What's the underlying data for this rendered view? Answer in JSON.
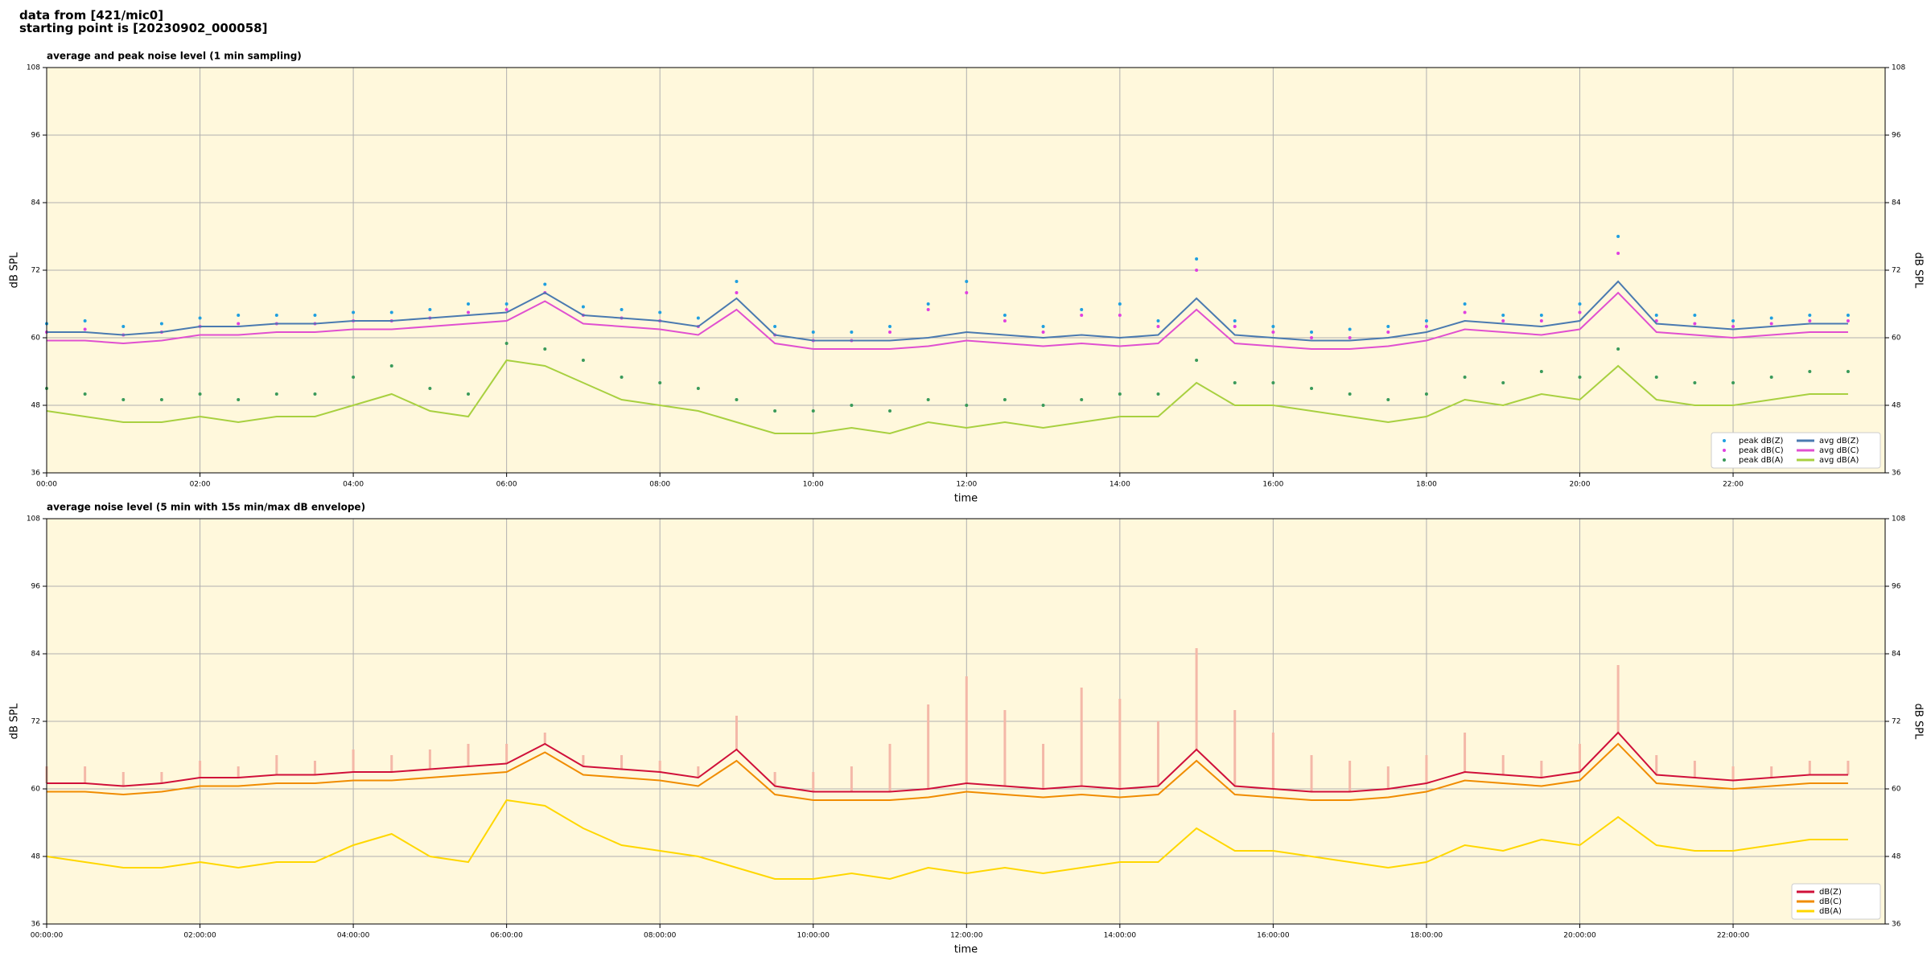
{
  "header": {
    "line1": "data from [421/mic0]",
    "line2": "starting point is [20230902_000058]"
  },
  "chart_data": [
    {
      "type": "line",
      "title": "average and peak noise level (1 min sampling)",
      "xlabel": "time",
      "ylabel": "dB SPL",
      "x": [
        "00:00",
        "00:30",
        "01:00",
        "01:30",
        "02:00",
        "02:30",
        "03:00",
        "03:30",
        "04:00",
        "04:30",
        "05:00",
        "05:30",
        "06:00",
        "06:30",
        "07:00",
        "07:30",
        "08:00",
        "08:30",
        "09:00",
        "09:30",
        "10:00",
        "10:30",
        "11:00",
        "11:30",
        "12:00",
        "12:30",
        "13:00",
        "13:30",
        "14:00",
        "14:30",
        "15:00",
        "15:30",
        "16:00",
        "16:30",
        "17:00",
        "17:30",
        "18:00",
        "18:30",
        "19:00",
        "19:30",
        "20:00",
        "20:30",
        "21:00",
        "21:30",
        "22:00",
        "22:30",
        "23:00",
        "23:30"
      ],
      "xlim": [
        "00:00",
        "23:59"
      ],
      "xticks": [
        "00:00",
        "02:00",
        "04:00",
        "06:00",
        "08:00",
        "10:00",
        "12:00",
        "14:00",
        "16:00",
        "18:00",
        "20:00",
        "22:00"
      ],
      "ylim": [
        36,
        108
      ],
      "yticks": [
        36,
        48,
        60,
        72,
        84,
        96,
        108
      ],
      "grid": true,
      "legend": "lower right",
      "legend_columns": 2,
      "series": [
        {
          "name": "peak dB(Z)",
          "type": "scatter",
          "color": "#1f9fe0",
          "values": [
            62.5,
            63,
            62,
            62.5,
            63.5,
            64,
            64,
            64,
            64.5,
            64.5,
            65,
            66,
            66,
            69.5,
            65.5,
            65,
            64.5,
            63.5,
            70,
            62,
            61,
            61,
            62,
            66,
            70,
            64,
            62,
            65,
            66,
            63,
            74,
            63,
            62,
            61,
            61.5,
            62,
            63,
            66,
            64,
            64,
            66,
            78,
            64,
            64,
            63,
            63.5,
            64,
            64
          ]
        },
        {
          "name": "peak dB(C)",
          "type": "scatter",
          "color": "#e040e0",
          "values": [
            61,
            61.5,
            60.5,
            61,
            62,
            62.5,
            62.5,
            62.5,
            63,
            63,
            63.5,
            64.5,
            65,
            68,
            64,
            63.5,
            63,
            62,
            68,
            60.5,
            59.5,
            59.5,
            61,
            65,
            68,
            63,
            61,
            64,
            64,
            62,
            72,
            62,
            61,
            60,
            60,
            61,
            62,
            64.5,
            63,
            63,
            64.5,
            75,
            63,
            62.5,
            62,
            62.5,
            63,
            63
          ]
        },
        {
          "name": "peak dB(A)",
          "type": "scatter",
          "color": "#3a9a5a",
          "values": [
            51,
            50,
            49,
            49,
            50,
            49,
            50,
            50,
            53,
            55,
            51,
            50,
            59,
            58,
            56,
            53,
            52,
            51,
            49,
            47,
            47,
            48,
            47,
            49,
            48,
            49,
            48,
            49,
            50,
            50,
            56,
            52,
            52,
            51,
            50,
            49,
            50,
            53,
            52,
            54,
            53,
            58,
            53,
            52,
            52,
            53,
            54,
            54
          ]
        },
        {
          "name": "avg dB(Z)",
          "type": "line",
          "color": "#4a7ab0",
          "values": [
            61,
            61,
            60.5,
            61,
            62,
            62,
            62.5,
            62.5,
            63,
            63,
            63.5,
            64,
            64.5,
            68,
            64,
            63.5,
            63,
            62,
            67,
            60.5,
            59.5,
            59.5,
            59.5,
            60,
            61,
            60.5,
            60,
            60.5,
            60,
            60.5,
            67,
            60.5,
            60,
            59.5,
            59.5,
            60,
            61,
            63,
            62.5,
            62,
            63,
            70,
            62.5,
            62,
            61.5,
            62,
            62.5,
            62.5
          ]
        },
        {
          "name": "avg dB(C)",
          "type": "line",
          "color": "#e050d0",
          "values": [
            59.5,
            59.5,
            59,
            59.5,
            60.5,
            60.5,
            61,
            61,
            61.5,
            61.5,
            62,
            62.5,
            63,
            66.5,
            62.5,
            62,
            61.5,
            60.5,
            65,
            59,
            58,
            58,
            58,
            58.5,
            59.5,
            59,
            58.5,
            59,
            58.5,
            59,
            65,
            59,
            58.5,
            58,
            58,
            58.5,
            59.5,
            61.5,
            61,
            60.5,
            61.5,
            68,
            61,
            60.5,
            60,
            60.5,
            61,
            61
          ]
        },
        {
          "name": "avg dB(A)",
          "type": "line",
          "color": "#a8d040",
          "values": [
            47,
            46,
            45,
            45,
            46,
            45,
            46,
            46,
            48,
            50,
            47,
            46,
            56,
            55,
            52,
            49,
            48,
            47,
            45,
            43,
            43,
            44,
            43,
            45,
            44,
            45,
            44,
            45,
            46,
            46,
            52,
            48,
            48,
            47,
            46,
            45,
            46,
            49,
            48,
            50,
            49,
            55,
            49,
            48,
            48,
            49,
            50,
            50
          ]
        }
      ]
    },
    {
      "type": "line",
      "title": "average noise level (5 min with 15s min/max dB envelope)",
      "xlabel": "time",
      "ylabel": "dB SPL",
      "x": [
        "00:00",
        "00:30",
        "01:00",
        "01:30",
        "02:00",
        "02:30",
        "03:00",
        "03:30",
        "04:00",
        "04:30",
        "05:00",
        "05:30",
        "06:00",
        "06:30",
        "07:00",
        "07:30",
        "08:00",
        "08:30",
        "09:00",
        "09:30",
        "10:00",
        "10:30",
        "11:00",
        "11:30",
        "12:00",
        "12:30",
        "13:00",
        "13:30",
        "14:00",
        "14:30",
        "15:00",
        "15:30",
        "16:00",
        "16:30",
        "17:00",
        "17:30",
        "18:00",
        "18:30",
        "19:00",
        "19:30",
        "20:00",
        "20:30",
        "21:00",
        "21:30",
        "22:00",
        "22:30",
        "23:00",
        "23:30"
      ],
      "xlim": [
        "00:00",
        "23:59"
      ],
      "xticks": [
        {
          "value": "00:00",
          "label": "00:00:00"
        },
        {
          "value": "02:00",
          "label": "02:00:00"
        },
        {
          "value": "04:00",
          "label": "04:00:00"
        },
        {
          "value": "06:00",
          "label": "06:00:00"
        },
        {
          "value": "08:00",
          "label": "08:00:00"
        },
        {
          "value": "10:00",
          "label": "10:00:00"
        },
        {
          "value": "12:00",
          "label": "12:00:00"
        },
        {
          "value": "14:00",
          "label": "14:00:00"
        },
        {
          "value": "16:00",
          "label": "16:00:00"
        },
        {
          "value": "18:00",
          "label": "18:00:00"
        },
        {
          "value": "20:00",
          "label": "20:00:00"
        },
        {
          "value": "22:00",
          "label": "22:00:00"
        }
      ],
      "ylim": [
        36,
        108
      ],
      "yticks": [
        36,
        48,
        60,
        72,
        84,
        96,
        108
      ],
      "grid": true,
      "legend": "lower right",
      "legend_columns": 1,
      "envelope": {
        "color": "#f4b8a8",
        "values": [
          64,
          64,
          63,
          63,
          65,
          64,
          66,
          65,
          67,
          66,
          67,
          68,
          68,
          70,
          66,
          66,
          65,
          64,
          73,
          63,
          63,
          64,
          68,
          75,
          80,
          74,
          68,
          78,
          76,
          72,
          85,
          74,
          70,
          66,
          65,
          64,
          66,
          70,
          66,
          65,
          68,
          82,
          66,
          65,
          64,
          64,
          65,
          65
        ]
      },
      "series": [
        {
          "name": "dB(Z)",
          "type": "line",
          "color": "#d0103a",
          "values": [
            61,
            61,
            60.5,
            61,
            62,
            62,
            62.5,
            62.5,
            63,
            63,
            63.5,
            64,
            64.5,
            68,
            64,
            63.5,
            63,
            62,
            67,
            60.5,
            59.5,
            59.5,
            59.5,
            60,
            61,
            60.5,
            60,
            60.5,
            60,
            60.5,
            67,
            60.5,
            60,
            59.5,
            59.5,
            60,
            61,
            63,
            62.5,
            62,
            63,
            70,
            62.5,
            62,
            61.5,
            62,
            62.5,
            62.5
          ]
        },
        {
          "name": "dB(C)",
          "type": "line",
          "color": "#f08c00",
          "values": [
            59.5,
            59.5,
            59,
            59.5,
            60.5,
            60.5,
            61,
            61,
            61.5,
            61.5,
            62,
            62.5,
            63,
            66.5,
            62.5,
            62,
            61.5,
            60.5,
            65,
            59,
            58,
            58,
            58,
            58.5,
            59.5,
            59,
            58.5,
            59,
            58.5,
            59,
            65,
            59,
            58.5,
            58,
            58,
            58.5,
            59.5,
            61.5,
            61,
            60.5,
            61.5,
            68,
            61,
            60.5,
            60,
            60.5,
            61,
            61
          ]
        },
        {
          "name": "dB(A)",
          "type": "line",
          "color": "#ffd700",
          "values": [
            48,
            47,
            46,
            46,
            47,
            46,
            47,
            47,
            50,
            52,
            48,
            47,
            58,
            57,
            53,
            50,
            49,
            48,
            46,
            44,
            44,
            45,
            44,
            46,
            45,
            46,
            45,
            46,
            47,
            47,
            53,
            49,
            49,
            48,
            47,
            46,
            47,
            50,
            49,
            51,
            50,
            55,
            50,
            49,
            49,
            50,
            51,
            51
          ]
        }
      ]
    }
  ]
}
